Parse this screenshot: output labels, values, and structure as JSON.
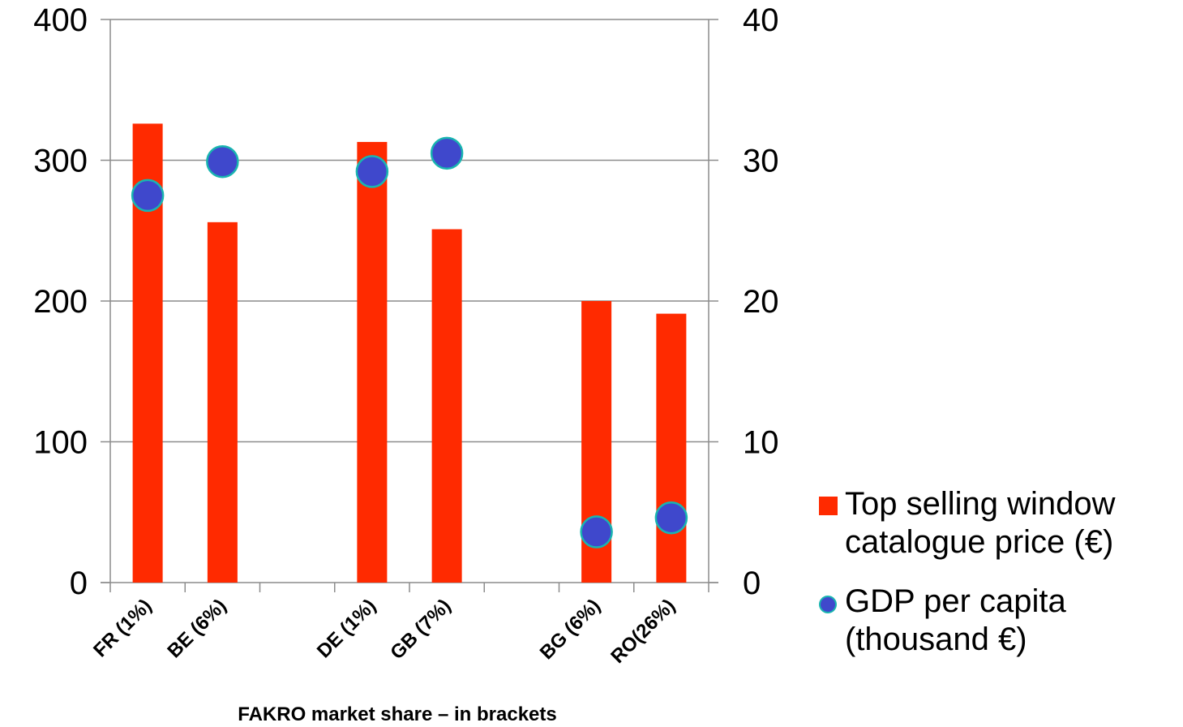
{
  "chart_data": {
    "type": "bar",
    "categories": [
      "FR (1%)",
      "BE (6%)",
      "",
      "DE (1%)",
      "GB (7%)",
      "",
      "BG (6%)",
      "RO(26%)"
    ],
    "xlabel": "FAKRO market share – in brackets",
    "ylim_left": [
      0,
      400
    ],
    "ylim_right": [
      0,
      40
    ],
    "yticks_left": [
      "0",
      "100",
      "200",
      "300",
      "400"
    ],
    "yticks_right": [
      "0",
      "10",
      "20",
      "30",
      "40"
    ],
    "grid": true,
    "legend_position": "right",
    "series": [
      {
        "name": "Top selling window catalogue price (€)",
        "type": "bar",
        "axis": "left",
        "color": "#ff2a00",
        "values": [
          326,
          256,
          null,
          313,
          251,
          null,
          200,
          191
        ]
      },
      {
        "name": "GDP per capita (thousand €)",
        "type": "scatter",
        "axis": "right",
        "color": "#3f48cc",
        "edge_color": "#19b5b0",
        "values": [
          27.5,
          29.9,
          null,
          29.2,
          30.5,
          null,
          3.6,
          4.6
        ]
      }
    ]
  },
  "legend": {
    "bar_label": "Top selling window catalogue price (€)",
    "dot_label": "GDP per capita (thousand €)"
  }
}
